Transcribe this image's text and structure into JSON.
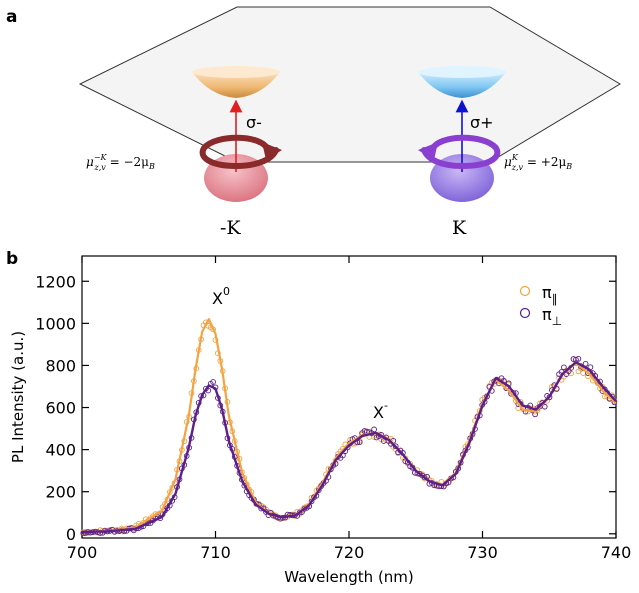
{
  "panel_a": {
    "label": "a",
    "valley_left": {
      "label": "-K",
      "transition": "σ-",
      "moment": {
        "prefix": "μ",
        "sup": "−K",
        "sub": "z,v",
        "rest": " = −2μ",
        "rest_sub": "B"
      }
    },
    "valley_right": {
      "label": "K",
      "transition": "σ+",
      "moment": {
        "prefix": "μ",
        "sup": "K",
        "sub": "z,v",
        "rest": " = +2μ",
        "rest_sub": "B"
      }
    },
    "colors": {
      "left_arrow": "#e02020",
      "right_arrow": "#1010d0",
      "left_circ": "#8b2a2a",
      "right_circ": "#8a3fd0"
    }
  },
  "panel_b": {
    "label": "b",
    "peak_labels": {
      "x0": "X",
      "x0_sup": "0",
      "xminus": "X",
      "xminus_sup": "-"
    },
    "legend": [
      {
        "symbol": "π",
        "sub": "∥",
        "color": "#f4a340"
      },
      {
        "symbol": "π",
        "sub": "⊥",
        "color": "#5a1f8a"
      }
    ]
  },
  "chart_data": {
    "type": "scatter",
    "xlabel": "Wavelength (nm)",
    "ylabel": "PL Intensity (a.u.)",
    "xlim": [
      700,
      740
    ],
    "ylim": [
      -20,
      1320
    ],
    "xticks": [
      700,
      710,
      720,
      730,
      740
    ],
    "yticks": [
      0,
      200,
      400,
      600,
      800,
      1000,
      1200
    ],
    "legend_position": "top-right",
    "series": [
      {
        "name": "π∥",
        "color": "#f4a340",
        "fit_x": [
          700,
          702,
          704,
          706,
          707,
          708,
          708.5,
          709,
          709.5,
          710,
          710.5,
          711,
          712,
          713,
          714,
          715,
          716,
          717,
          718,
          719,
          720,
          721,
          722,
          723,
          724,
          725,
          726,
          727,
          728,
          729,
          730,
          731,
          732,
          733,
          734,
          735,
          736,
          737,
          738,
          739,
          740
        ],
        "fit_y": [
          8,
          14,
          30,
          110,
          260,
          560,
          780,
          960,
          1020,
          950,
          780,
          560,
          290,
          150,
          95,
          78,
          90,
          140,
          240,
          360,
          430,
          470,
          480,
          450,
          380,
          300,
          250,
          235,
          290,
          440,
          620,
          730,
          680,
          590,
          580,
          650,
          760,
          810,
          760,
          680,
          620
        ]
      },
      {
        "name": "π⊥",
        "color": "#5a1f8a",
        "fit_x": [
          700,
          702,
          704,
          706,
          707,
          708,
          708.5,
          709,
          709.5,
          710,
          710.5,
          711,
          712,
          713,
          714,
          715,
          716,
          717,
          718,
          719,
          720,
          721,
          722,
          723,
          724,
          725,
          726,
          727,
          728,
          729,
          730,
          731,
          732,
          733,
          734,
          735,
          736,
          737,
          738,
          739,
          740
        ],
        "fit_y": [
          8,
          12,
          24,
          80,
          190,
          410,
          560,
          660,
          705,
          690,
          590,
          440,
          250,
          140,
          95,
          78,
          88,
          135,
          230,
          350,
          420,
          465,
          480,
          445,
          380,
          300,
          250,
          230,
          285,
          430,
          610,
          740,
          700,
          610,
          590,
          650,
          760,
          815,
          780,
          700,
          630
        ]
      }
    ]
  }
}
